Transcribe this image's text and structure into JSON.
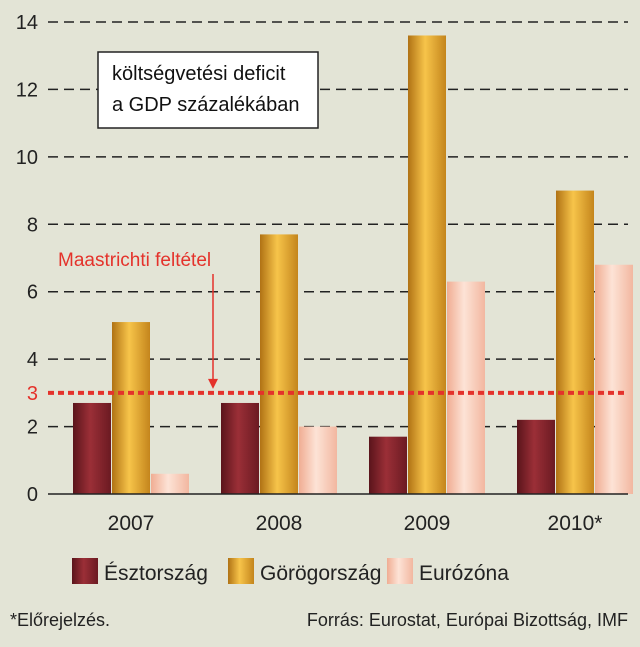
{
  "chart_data": {
    "type": "bar",
    "title_lines": [
      "költségvetési deficit",
      "a GDP százalékában"
    ],
    "categories": [
      "2007",
      "2008",
      "2009",
      "2010*"
    ],
    "series": [
      {
        "name": "Észtország",
        "values": [
          2.7,
          2.7,
          1.7,
          2.2
        ]
      },
      {
        "name": "Görögország",
        "values": [
          5.1,
          7.7,
          13.6,
          9.0
        ]
      },
      {
        "name": "Eurózóna",
        "values": [
          0.6,
          2.0,
          6.3,
          6.8
        ]
      }
    ],
    "ylim": [
      0,
      14
    ],
    "yticks": [
      0,
      2,
      4,
      6,
      8,
      10,
      12,
      14
    ],
    "grid": true,
    "threshold": {
      "value": 3,
      "label": "Maastrichti feltétel",
      "tick_label": "3"
    },
    "legend_position": "bottom"
  },
  "colors": {
    "Észtország": "#8b2630",
    "Görögország": "#e3a526",
    "Eurózóna": "#f8c9b4",
    "threshold": "#e4322b"
  },
  "footnote": "*Előrejelzés.",
  "source": "Forrás: Eurostat, Európai Bizottság, IMF"
}
